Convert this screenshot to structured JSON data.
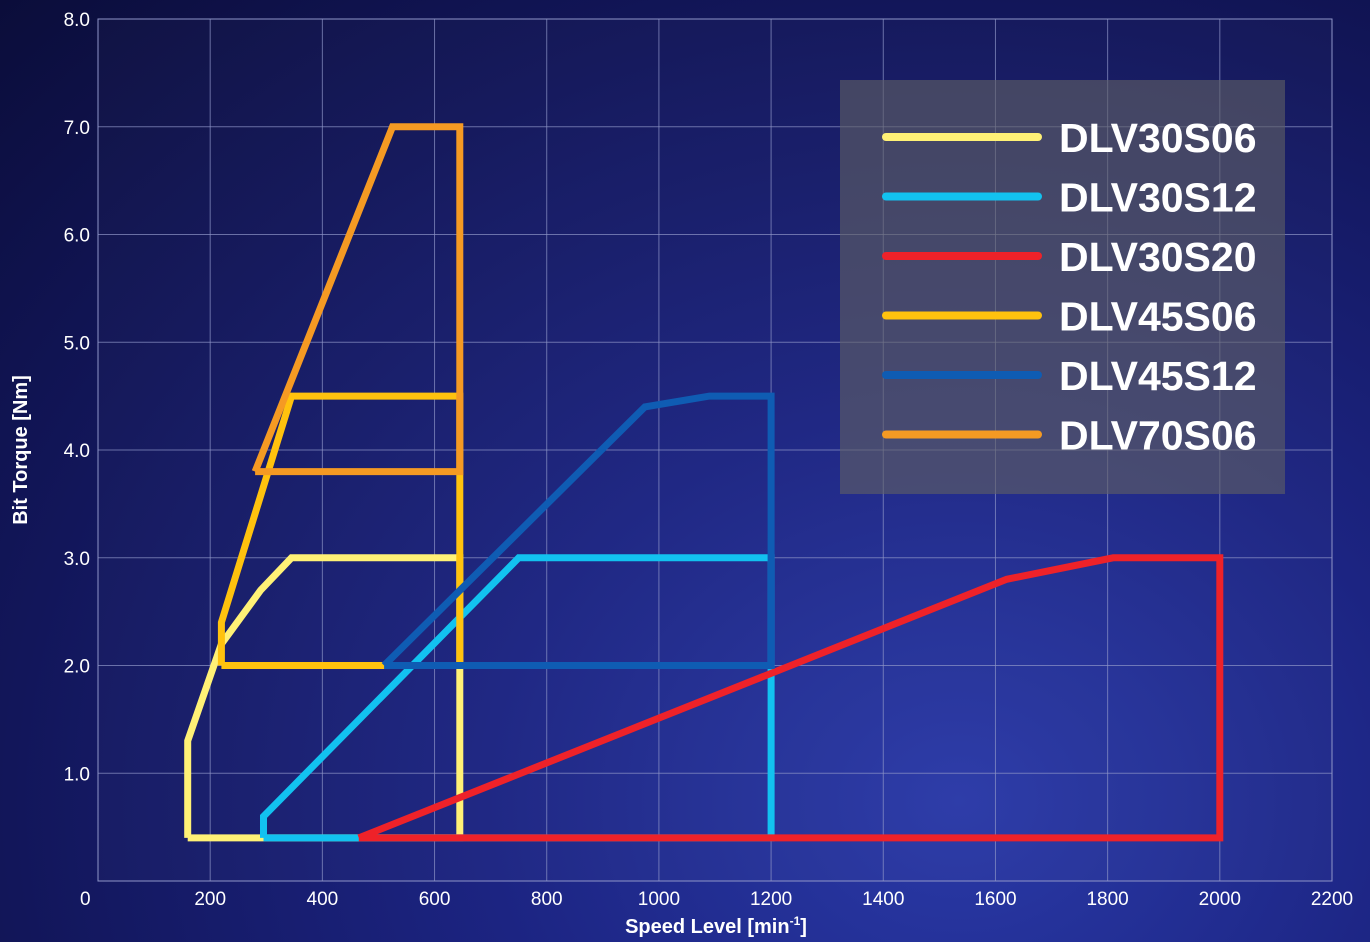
{
  "chart_data": {
    "type": "line",
    "xlabel": "Speed Level [min",
    "xlabel_sup": "-1",
    "xlabel_end": "]",
    "ylabel": "Bit Torque [Nm]",
    "xlim": [
      0,
      2200
    ],
    "ylim": [
      0,
      8
    ],
    "x_ticks": [
      {
        "value": 0,
        "label": "0"
      },
      {
        "value": 200,
        "label": "200"
      },
      {
        "value": 400,
        "label": "400"
      },
      {
        "value": 600,
        "label": "600"
      },
      {
        "value": 800,
        "label": "800"
      },
      {
        "value": 1000,
        "label": "1000"
      },
      {
        "value": 1200,
        "label": "1200"
      },
      {
        "value": 1400,
        "label": "1400"
      },
      {
        "value": 1600,
        "label": "1600"
      },
      {
        "value": 1800,
        "label": "1800"
      },
      {
        "value": 2000,
        "label": "2000"
      },
      {
        "value": 2200,
        "label": "2200"
      }
    ],
    "y_ticks": [
      {
        "value": 1,
        "label": "1.0"
      },
      {
        "value": 2,
        "label": "2.0"
      },
      {
        "value": 3,
        "label": "3.0"
      },
      {
        "value": 4,
        "label": "4.0"
      },
      {
        "value": 5,
        "label": "5.0"
      },
      {
        "value": 6,
        "label": "6.0"
      },
      {
        "value": 7,
        "label": "7.0"
      },
      {
        "value": 8,
        "label": "8.0"
      }
    ],
    "grid": true,
    "legend_position": "top-right",
    "series": [
      {
        "name": "DLV30S06",
        "color": "#fff176",
        "x": [
          160,
          160,
          220,
          290,
          345,
          645,
          645,
          160
        ],
        "y": [
          0.4,
          1.3,
          2.2,
          2.7,
          3.0,
          3.0,
          0.4,
          0.4
        ]
      },
      {
        "name": "DLV30S12",
        "color": "#12c2f0",
        "x": [
          295,
          295,
          750,
          1200,
          1200,
          295
        ],
        "y": [
          0.4,
          0.6,
          3.0,
          3.0,
          0.4,
          0.4
        ]
      },
      {
        "name": "DLV30S20",
        "color": "#ee2229",
        "x": [
          465,
          1620,
          1810,
          2000,
          2000,
          465
        ],
        "y": [
          0.4,
          2.8,
          3.0,
          3.0,
          0.4,
          0.4
        ]
      },
      {
        "name": "DLV45S06",
        "color": "#ffc20e",
        "x": [
          220,
          220,
          345,
          645,
          645,
          220
        ],
        "y": [
          2.0,
          2.4,
          4.5,
          4.5,
          2.0,
          2.0
        ]
      },
      {
        "name": "DLV45S12",
        "color": "#0f5cb3",
        "x": [
          510,
          975,
          1090,
          1200,
          1200,
          510
        ],
        "y": [
          2.0,
          4.4,
          4.5,
          4.5,
          2.0,
          2.0
        ]
      },
      {
        "name": "DLV70S06",
        "color": "#f59a23",
        "x": [
          280,
          525,
          645,
          645,
          280
        ],
        "y": [
          3.8,
          7.0,
          7.0,
          3.8,
          3.8
        ]
      }
    ]
  }
}
